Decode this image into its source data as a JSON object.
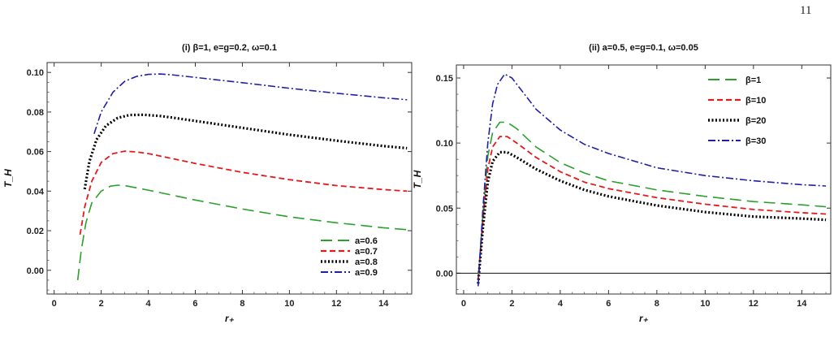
{
  "page_number": "11",
  "chart_data": [
    {
      "type": "line",
      "title": "(i) β=1, e=g=0.2, ω=0.1",
      "xlabel": "r₊",
      "ylabel": "T_H",
      "xlim": [
        -0.3,
        15.2
      ],
      "ylim": [
        -0.012,
        0.105
      ],
      "xticks": [
        0,
        2,
        4,
        6,
        8,
        10,
        12,
        14
      ],
      "yticks": [
        0.0,
        0.02,
        0.04,
        0.06,
        0.08,
        0.1
      ],
      "ytick_labels": [
        "0.00",
        "0.02",
        "0.04",
        "0.06",
        "0.08",
        "0.10"
      ],
      "zero_line": false,
      "legend_position": "bottom-right",
      "series": [
        {
          "name": "a=0.6",
          "color": "#2ca02c",
          "style": "long-dash",
          "x": [
            1.0,
            1.15,
            1.35,
            1.6,
            2.0,
            2.4,
            2.7,
            3.0,
            4.0,
            5.0,
            6.0,
            8.0,
            10.0,
            12.0,
            14.0,
            15.0
          ],
          "y": [
            -0.005,
            0.01,
            0.024,
            0.034,
            0.04,
            0.0425,
            0.043,
            0.0428,
            0.0405,
            0.038,
            0.0355,
            0.031,
            0.027,
            0.024,
            0.0215,
            0.0205
          ]
        },
        {
          "name": "a=0.7",
          "color": "#e41a1c",
          "style": "dash",
          "x": [
            1.1,
            1.3,
            1.6,
            2.0,
            2.5,
            3.0,
            3.5,
            4.0,
            5.0,
            6.0,
            8.0,
            10.0,
            12.0,
            14.0,
            15.0
          ],
          "y": [
            0.018,
            0.032,
            0.045,
            0.0545,
            0.059,
            0.0602,
            0.0598,
            0.059,
            0.0565,
            0.054,
            0.0495,
            0.0458,
            0.0428,
            0.0408,
            0.04
          ]
        },
        {
          "name": "a=0.8",
          "color": "#000000",
          "style": "dot",
          "x": [
            1.3,
            1.5,
            1.8,
            2.2,
            2.7,
            3.2,
            3.8,
            4.5,
            5.0,
            6.0,
            8.0,
            10.0,
            12.0,
            14.0,
            15.0
          ],
          "y": [
            0.041,
            0.055,
            0.066,
            0.073,
            0.077,
            0.0785,
            0.0786,
            0.078,
            0.0772,
            0.0755,
            0.072,
            0.0685,
            0.0655,
            0.0628,
            0.0617
          ]
        },
        {
          "name": "a=0.9",
          "color": "#1f1fa8",
          "style": "dash-dot",
          "x": [
            1.7,
            2.0,
            2.5,
            3.0,
            3.5,
            4.0,
            4.5,
            5.0,
            6.0,
            8.0,
            10.0,
            12.0,
            14.0,
            15.0
          ],
          "y": [
            0.069,
            0.08,
            0.09,
            0.0955,
            0.098,
            0.099,
            0.0992,
            0.0988,
            0.0975,
            0.0948,
            0.092,
            0.0895,
            0.0872,
            0.0862
          ]
        }
      ]
    },
    {
      "type": "line",
      "title": "(ii) a=0.5, e=g=0.1, ω=0.05",
      "xlabel": "r₊",
      "ylabel": "T_H",
      "xlim": [
        -0.3,
        15.2
      ],
      "ylim": [
        -0.016,
        0.16
      ],
      "xticks": [
        0,
        2,
        4,
        6,
        8,
        10,
        12,
        14
      ],
      "yticks": [
        0.0,
        0.05,
        0.1,
        0.15
      ],
      "ytick_labels": [
        "0.00",
        "0.05",
        "0.10",
        "0.15"
      ],
      "zero_line": true,
      "legend_position": "top-right",
      "series": [
        {
          "name": "β=1",
          "color": "#2ca02c",
          "style": "long-dash",
          "x": [
            0.6,
            0.8,
            1.0,
            1.2,
            1.5,
            1.8,
            2.2,
            3.0,
            4.0,
            5.0,
            6.0,
            8.0,
            10.0,
            12.0,
            14.0,
            15.0
          ],
          "y": [
            -0.005,
            0.045,
            0.09,
            0.108,
            0.116,
            0.116,
            0.111,
            0.097,
            0.085,
            0.077,
            0.071,
            0.064,
            0.059,
            0.055,
            0.0525,
            0.051
          ]
        },
        {
          "name": "β=10",
          "color": "#e41a1c",
          "style": "dash",
          "x": [
            0.6,
            0.8,
            1.0,
            1.2,
            1.5,
            1.8,
            2.2,
            3.0,
            4.0,
            5.0,
            6.0,
            8.0,
            10.0,
            12.0,
            14.0,
            15.0
          ],
          "y": [
            -0.005,
            0.04,
            0.08,
            0.097,
            0.105,
            0.105,
            0.1,
            0.089,
            0.078,
            0.07,
            0.065,
            0.058,
            0.053,
            0.049,
            0.0465,
            0.0455
          ]
        },
        {
          "name": "β=20",
          "color": "#000000",
          "style": "dot",
          "x": [
            0.6,
            0.8,
            1.0,
            1.2,
            1.5,
            1.8,
            2.2,
            3.0,
            4.0,
            5.0,
            6.0,
            8.0,
            10.0,
            12.0,
            14.0,
            15.0
          ],
          "y": [
            -0.008,
            0.035,
            0.07,
            0.086,
            0.093,
            0.093,
            0.089,
            0.08,
            0.071,
            0.064,
            0.059,
            0.052,
            0.047,
            0.0435,
            0.042,
            0.041
          ]
        },
        {
          "name": "β=30",
          "color": "#1f1fa8",
          "style": "dash-dot",
          "x": [
            0.6,
            0.8,
            1.0,
            1.2,
            1.4,
            1.7,
            2.0,
            2.5,
            3.0,
            4.0,
            5.0,
            6.0,
            8.0,
            10.0,
            12.0,
            14.0,
            15.0
          ],
          "y": [
            -0.01,
            0.05,
            0.1,
            0.13,
            0.145,
            0.153,
            0.15,
            0.138,
            0.126,
            0.11,
            0.099,
            0.092,
            0.081,
            0.075,
            0.071,
            0.068,
            0.067
          ]
        }
      ]
    }
  ]
}
